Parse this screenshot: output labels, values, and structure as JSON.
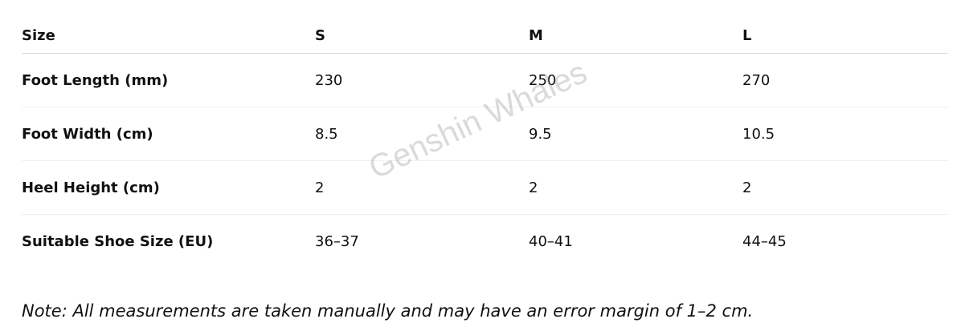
{
  "table": {
    "headers": [
      "Size",
      "S",
      "M",
      "L"
    ],
    "rows": [
      [
        "Foot Length (mm)",
        "230",
        "250",
        "270"
      ],
      [
        "Foot Width (cm)",
        "8.5",
        "9.5",
        "10.5"
      ],
      [
        "Heel Height (cm)",
        "2",
        "2",
        "2"
      ],
      [
        "Suitable Shoe Size (EU)",
        "36–37",
        "40–41",
        "44–45"
      ]
    ]
  },
  "note": "Note: All measurements are taken manually and may have an error margin of 1–2 cm.",
  "watermark": "Genshin Whales"
}
